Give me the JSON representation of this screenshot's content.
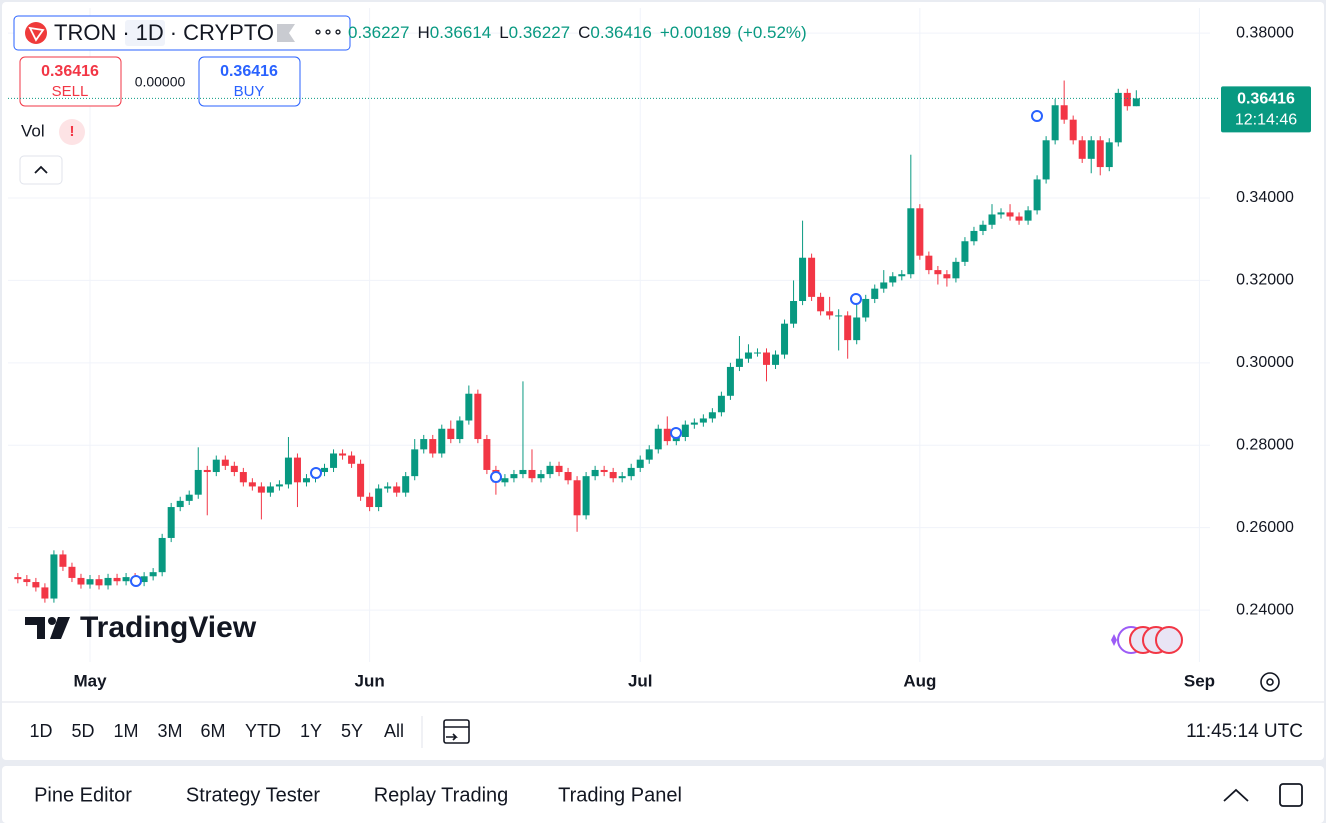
{
  "chart_data": {
    "type": "candlestick",
    "symbol": {
      "name": "TRON",
      "separator": "·",
      "interval": "1D",
      "exchange": "CRYPTO",
      "more": "∘∘∘"
    },
    "legend": {
      "open": "0.36227",
      "items": [
        {
          "label": "H",
          "value": "0.36614"
        },
        {
          "label": "L",
          "value": "0.36227"
        },
        {
          "label": "C",
          "value": "0.36416"
        }
      ],
      "change": "+0.00189",
      "change_pct": "(+0.52%)"
    },
    "trade": {
      "sell_price": "0.36416",
      "sell_label": "SELL",
      "spread": "0.00000",
      "buy_price": "0.36416",
      "buy_label": "BUY"
    },
    "indicator": {
      "name": "Vol",
      "alert": "!"
    },
    "categories": [
      null,
      null,
      null,
      null,
      null,
      null,
      null,
      null,
      "May",
      null,
      null,
      null,
      null,
      null,
      null,
      null,
      null,
      null,
      null,
      null,
      null,
      null,
      null,
      null,
      null,
      null,
      null,
      null,
      null,
      null,
      null,
      null,
      null,
      null,
      null,
      null,
      null,
      null,
      null,
      "Jun",
      null,
      null,
      null,
      null,
      null,
      null,
      null,
      null,
      null,
      null,
      null,
      null,
      null,
      null,
      null,
      null,
      null,
      null,
      null,
      null,
      null,
      null,
      null,
      null,
      null,
      null,
      null,
      null,
      null,
      "Jul",
      null,
      null,
      null,
      null,
      null,
      null,
      null,
      null,
      null,
      null,
      null,
      null,
      null,
      null,
      null,
      null,
      null,
      null,
      null,
      null,
      null,
      null,
      null,
      null,
      null,
      null,
      null,
      null,
      null,
      null,
      "Aug",
      null,
      null,
      null,
      null,
      null,
      null,
      null,
      null,
      null,
      null,
      null,
      null,
      null,
      null,
      null,
      null,
      null,
      null,
      null,
      null,
      null,
      null,
      null,
      null,
      null,
      null,
      null,
      null,
      null,
      null,
      "Sep"
    ],
    "open": [
      0.248,
      0.2475,
      0.2468,
      0.2455,
      0.2428,
      0.2535,
      0.2505,
      0.2478,
      0.2462,
      0.2475,
      0.246,
      0.2478,
      0.247,
      0.248,
      0.2468,
      0.2482,
      0.2492,
      0.2575,
      0.265,
      0.2665,
      0.268,
      0.274,
      0.2735,
      0.2765,
      0.275,
      0.2735,
      0.271,
      0.27,
      0.2685,
      0.27,
      0.2705,
      0.277,
      0.271,
      0.272,
      0.2735,
      0.2745,
      0.278,
      0.2775,
      0.2755,
      0.2675,
      0.265,
      0.2695,
      0.27,
      0.2685,
      0.2725,
      0.279,
      0.2815,
      0.278,
      0.284,
      0.2815,
      0.286,
      0.2925,
      0.2815,
      0.274,
      0.271,
      0.272,
      0.273,
      0.274,
      0.272,
      0.273,
      0.275,
      0.2735,
      0.2715,
      0.263,
      0.2725,
      0.274,
      0.2735,
      0.272,
      0.2725,
      0.2745,
      0.2765,
      0.279,
      0.284,
      0.281,
      0.282,
      0.285,
      0.2855,
      0.2865,
      0.288,
      0.292,
      0.299,
      0.301,
      0.3025,
      0.3025,
      0.2995,
      0.302,
      0.3095,
      0.315,
      0.3255,
      0.316,
      0.3125,
      0.3115,
      0.3115,
      0.3055,
      0.311,
      0.3155,
      0.318,
      0.3195,
      0.321,
      0.3215,
      0.3375,
      0.326,
      0.3225,
      0.3215,
      0.3205,
      0.3245,
      0.3295,
      0.332,
      0.3335,
      0.336,
      0.3365,
      0.3355,
      0.3345,
      0.337,
      0.3445,
      0.354,
      0.3625,
      0.359,
      0.354,
      0.3495,
      0.354,
      0.3475,
      0.3535,
      0.3655,
      0.36227,
      null,
      null,
      null,
      null,
      null,
      null,
      null
    ],
    "high": [
      0.249,
      0.2485,
      0.2478,
      0.2465,
      0.2545,
      0.2545,
      0.2515,
      0.2488,
      0.2485,
      0.2485,
      0.2488,
      0.2488,
      0.249,
      0.249,
      0.2492,
      0.2502,
      0.2585,
      0.266,
      0.2675,
      0.269,
      0.2795,
      0.275,
      0.2775,
      0.2775,
      0.276,
      0.2745,
      0.272,
      0.271,
      0.271,
      0.2715,
      0.282,
      0.278,
      0.273,
      0.2745,
      0.2755,
      0.279,
      0.279,
      0.2785,
      0.2765,
      0.2685,
      0.2705,
      0.271,
      0.271,
      0.2735,
      0.2815,
      0.2825,
      0.2825,
      0.285,
      0.286,
      0.287,
      0.2945,
      0.2935,
      0.2825,
      0.275,
      0.273,
      0.274,
      0.2955,
      0.279,
      0.274,
      0.276,
      0.276,
      0.2745,
      0.2725,
      0.2735,
      0.275,
      0.275,
      0.2745,
      0.2735,
      0.2755,
      0.2775,
      0.28,
      0.285,
      0.287,
      0.283,
      0.286,
      0.2865,
      0.2875,
      0.289,
      0.293,
      0.3,
      0.3065,
      0.3045,
      0.3035,
      0.3035,
      0.303,
      0.3105,
      0.32,
      0.3345,
      0.3265,
      0.317,
      0.316,
      0.313,
      0.3125,
      0.316,
      0.3165,
      0.319,
      0.3225,
      0.322,
      0.3225,
      0.3505,
      0.3385,
      0.327,
      0.3235,
      0.3225,
      0.3255,
      0.3305,
      0.333,
      0.3345,
      0.3385,
      0.3375,
      0.3385,
      0.3365,
      0.338,
      0.3455,
      0.355,
      0.364,
      0.3685,
      0.36,
      0.355,
      0.355,
      0.355,
      0.3545,
      0.3665,
      0.3665,
      0.36614,
      null,
      null,
      null,
      null,
      null,
      null,
      null
    ],
    "low": [
      0.2465,
      0.2458,
      0.2445,
      0.2418,
      0.2418,
      0.2495,
      0.2468,
      0.2452,
      0.2452,
      0.245,
      0.245,
      0.246,
      0.246,
      0.2458,
      0.2458,
      0.2472,
      0.2482,
      0.2565,
      0.264,
      0.2655,
      0.267,
      0.263,
      0.2725,
      0.274,
      0.2725,
      0.27,
      0.269,
      0.262,
      0.2675,
      0.269,
      0.2695,
      0.265,
      0.27,
      0.271,
      0.2725,
      0.2735,
      0.2765,
      0.2745,
      0.2665,
      0.264,
      0.264,
      0.2685,
      0.2675,
      0.2675,
      0.2715,
      0.278,
      0.277,
      0.277,
      0.2805,
      0.2805,
      0.285,
      0.2805,
      0.273,
      0.268,
      0.27,
      0.271,
      0.272,
      0.271,
      0.271,
      0.272,
      0.2725,
      0.2705,
      0.259,
      0.262,
      0.2715,
      0.2725,
      0.271,
      0.271,
      0.2715,
      0.2735,
      0.2755,
      0.278,
      0.28,
      0.28,
      0.281,
      0.284,
      0.2845,
      0.2855,
      0.287,
      0.291,
      0.298,
      0.3,
      0.3015,
      0.2955,
      0.2985,
      0.301,
      0.3085,
      0.314,
      0.315,
      0.3115,
      0.3105,
      0.303,
      0.301,
      0.3045,
      0.31,
      0.3145,
      0.317,
      0.3185,
      0.32,
      0.3205,
      0.325,
      0.3215,
      0.319,
      0.3185,
      0.3195,
      0.3235,
      0.3285,
      0.331,
      0.3325,
      0.335,
      0.3345,
      0.3335,
      0.3335,
      0.336,
      0.3435,
      0.353,
      0.358,
      0.353,
      0.3485,
      0.346,
      0.3455,
      0.3465,
      0.3525,
      0.3612,
      0.36227,
      null,
      null,
      null,
      null,
      null,
      null,
      null
    ],
    "close": [
      0.2475,
      0.2468,
      0.2455,
      0.2428,
      0.2535,
      0.2505,
      0.2478,
      0.2462,
      0.2475,
      0.246,
      0.2478,
      0.247,
      0.248,
      0.2468,
      0.2482,
      0.2492,
      0.2575,
      0.265,
      0.2665,
      0.268,
      0.274,
      0.2735,
      0.2765,
      0.275,
      0.2735,
      0.271,
      0.27,
      0.2685,
      0.27,
      0.2705,
      0.277,
      0.271,
      0.272,
      0.2735,
      0.2745,
      0.278,
      0.2775,
      0.2755,
      0.2675,
      0.265,
      0.2695,
      0.27,
      0.2685,
      0.2725,
      0.279,
      0.2815,
      0.278,
      0.284,
      0.2815,
      0.286,
      0.2925,
      0.2815,
      0.274,
      0.271,
      0.272,
      0.273,
      0.274,
      0.272,
      0.273,
      0.275,
      0.2735,
      0.2715,
      0.263,
      0.2725,
      0.274,
      0.2735,
      0.272,
      0.2725,
      0.2745,
      0.2765,
      0.279,
      0.284,
      0.281,
      0.282,
      0.285,
      0.2855,
      0.2865,
      0.288,
      0.292,
      0.299,
      0.301,
      0.3025,
      0.3025,
      0.2995,
      0.302,
      0.3095,
      0.315,
      0.3255,
      0.316,
      0.3125,
      0.3115,
      0.3115,
      0.3055,
      0.311,
      0.3155,
      0.318,
      0.3195,
      0.321,
      0.3215,
      0.3375,
      0.326,
      0.3225,
      0.3215,
      0.3205,
      0.3245,
      0.3295,
      0.332,
      0.3335,
      0.336,
      0.3365,
      0.3355,
      0.3345,
      0.337,
      0.3445,
      0.354,
      0.3625,
      0.359,
      0.354,
      0.3495,
      0.354,
      0.3475,
      0.3535,
      0.3655,
      0.36227,
      0.36416,
      null,
      null,
      null,
      null,
      null,
      null,
      null
    ],
    "up_color": "#089981",
    "down_color": "#f23645",
    "current_price": 0.36416,
    "countdown": "12:14:46",
    "ylim": [
      0.2274,
      0.3861
    ],
    "yticks": [
      {
        "value": 0.24,
        "label": "0.24000"
      },
      {
        "value": 0.26,
        "label": "0.26000"
      },
      {
        "value": 0.28,
        "label": "0.28000"
      },
      {
        "value": 0.3,
        "label": "0.30000"
      },
      {
        "value": 0.32,
        "label": "0.32000"
      },
      {
        "value": 0.34,
        "label": "0.34000"
      },
      {
        "value": 0.38,
        "label": "0.38000"
      }
    ],
    "grid": true
  },
  "brand": "TradingView",
  "ranges": [
    "1D",
    "5D",
    "1M",
    "3M",
    "6M",
    "YTD",
    "1Y",
    "5Y",
    "All"
  ],
  "clock": "11:45:14 UTC",
  "bottom_tabs": [
    "Pine Editor",
    "Strategy Tester",
    "Replay Trading",
    "Trading Panel"
  ]
}
